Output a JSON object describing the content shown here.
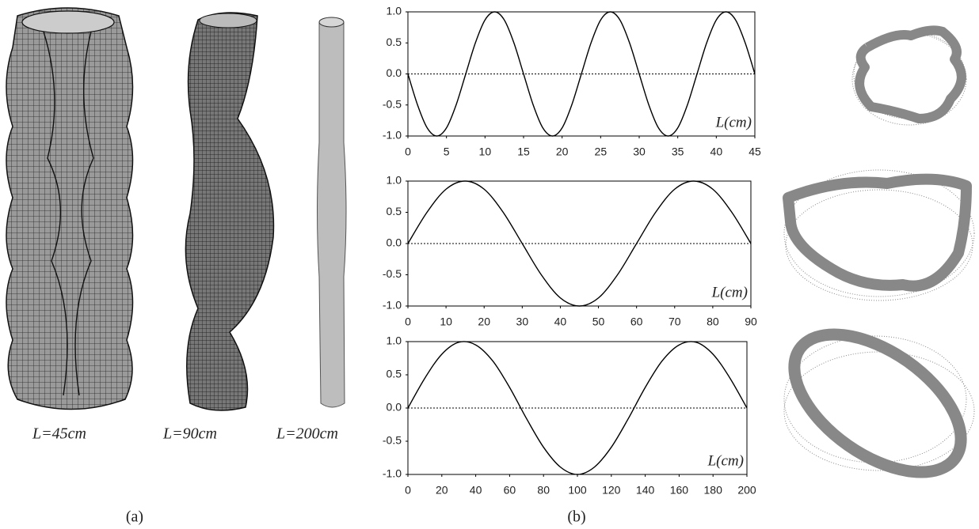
{
  "panel_a": {
    "labels": [
      "L=45cm",
      "L=90cm",
      "L=200cm"
    ],
    "caption": "(a)"
  },
  "panel_b": {
    "caption": "(b)"
  },
  "chart_data": [
    {
      "type": "line",
      "annotation": "L(cm)",
      "color": "#000000",
      "zero_line": true,
      "xlim": [
        0,
        45
      ],
      "xticks": [
        0,
        5,
        10,
        15,
        20,
        25,
        30,
        35,
        40,
        45
      ],
      "ylim": [
        -1,
        1
      ],
      "yticks": [
        {
          "value": -1,
          "label": "-1.0"
        },
        -0.5,
        {
          "value": 0,
          "label": "0.0"
        },
        0.5,
        {
          "value": 1,
          "label": "1.0"
        }
      ],
      "x": [
        0,
        1.25,
        2.5,
        3.75,
        5,
        6.25,
        7.5,
        8.75,
        10,
        11.25,
        12.5,
        13.75,
        15,
        16.25,
        17.5,
        18.75,
        20,
        21.25,
        22.5,
        23.75,
        25,
        26.25,
        27.5,
        28.75,
        30,
        31.25,
        32.5,
        33.75,
        35,
        36.25,
        37.5,
        38.75,
        40,
        41.25,
        42.5,
        43.75,
        45
      ],
      "values": [
        0,
        -0.5,
        -0.87,
        -1,
        -0.87,
        -0.5,
        0,
        0.5,
        0.87,
        1,
        0.87,
        0.5,
        0,
        -0.5,
        -0.87,
        -1,
        -0.87,
        -0.5,
        0,
        0.5,
        0.87,
        1,
        0.87,
        0.5,
        0,
        -0.5,
        -0.87,
        -1,
        -0.87,
        -0.5,
        0,
        0.5,
        0.87,
        1,
        0.87,
        0.5,
        0
      ]
    },
    {
      "type": "line",
      "annotation": "L(cm)",
      "color": "#000000",
      "zero_line": true,
      "xlim": [
        0,
        90
      ],
      "xticks": [
        0,
        10,
        20,
        30,
        40,
        50,
        60,
        70,
        80,
        90
      ],
      "ylim": [
        -1,
        1
      ],
      "yticks": [
        {
          "value": -1,
          "label": "-1.0"
        },
        -0.5,
        {
          "value": 0,
          "label": "0.0"
        },
        0.5,
        {
          "value": 1,
          "label": "1.0"
        }
      ],
      "x": [
        0,
        5,
        10,
        15,
        20,
        25,
        30,
        35,
        40,
        45,
        50,
        55,
        60,
        65,
        70,
        75,
        80,
        85,
        90
      ],
      "values": [
        0,
        0.5,
        0.87,
        1,
        0.87,
        0.5,
        0,
        -0.5,
        -0.87,
        -1,
        -0.87,
        -0.5,
        0,
        0.5,
        0.87,
        1,
        0.87,
        0.5,
        0
      ]
    },
    {
      "type": "line",
      "annotation": "L(cm)",
      "color": "#000000",
      "zero_line": true,
      "xlim": [
        0,
        200
      ],
      "xticks": [
        0,
        20,
        40,
        60,
        80,
        100,
        120,
        140,
        160,
        180,
        200
      ],
      "ylim": [
        -1,
        1
      ],
      "yticks": [
        {
          "value": -1,
          "label": "-1.0"
        },
        -0.5,
        {
          "value": 0,
          "label": "0.0"
        },
        0.5,
        {
          "value": 1,
          "label": "1.0"
        }
      ],
      "x": [
        0,
        10,
        20,
        30,
        40,
        50,
        60,
        70,
        80,
        90,
        100,
        110,
        120,
        130,
        140,
        150,
        160,
        170,
        180,
        190,
        200
      ],
      "values": [
        0,
        0.45,
        0.81,
        0.99,
        0.95,
        0.71,
        0.31,
        -0.16,
        -0.59,
        -0.89,
        -1,
        -0.89,
        -0.59,
        -0.16,
        0.31,
        0.71,
        0.95,
        0.99,
        0.81,
        0.45,
        0
      ]
    }
  ]
}
